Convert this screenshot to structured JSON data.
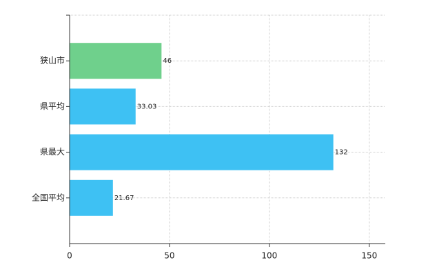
{
  "chart_data": {
    "type": "barh",
    "categories": [
      "狭山市",
      "県平均",
      "県最大",
      "全国平均"
    ],
    "values": [
      46,
      33.03,
      132,
      21.67
    ],
    "colors": [
      "#6fd08c",
      "#3ec1f3",
      "#3ec1f3",
      "#3ec1f3"
    ],
    "xlim": [
      0,
      158
    ],
    "xticks": [
      0,
      50,
      100,
      150
    ],
    "grid": true
  }
}
